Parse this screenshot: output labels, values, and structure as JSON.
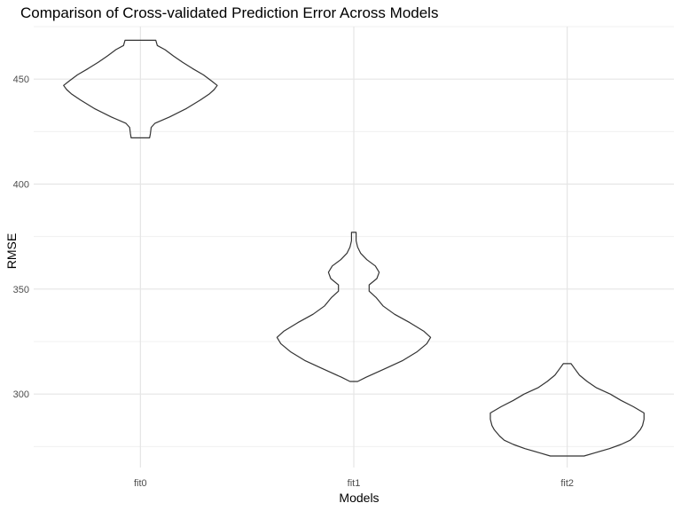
{
  "chart_data": {
    "type": "violin",
    "title": "Comparison of Cross-validated Prediction Error Across Models",
    "xlabel": "Models",
    "ylabel": "RMSE",
    "categories": [
      "fit0",
      "fit1",
      "fit2"
    ],
    "y_ticks": [
      300,
      350,
      400,
      450
    ],
    "ylim": [
      265,
      475
    ],
    "grid": true,
    "legend": "none",
    "colors": {
      "outline": "#333333",
      "grid_major": "#e5e5e5",
      "grid_minor": "#f0f0f0",
      "text": "#4d4d4d"
    },
    "series": [
      {
        "category": "fit0",
        "min": 422,
        "max": 468.5,
        "density": [
          [
            422,
            0.12
          ],
          [
            424,
            0.13
          ],
          [
            427,
            0.14
          ],
          [
            429,
            0.19
          ],
          [
            432,
            0.38
          ],
          [
            436,
            0.6
          ],
          [
            440,
            0.78
          ],
          [
            443,
            0.9
          ],
          [
            445,
            0.96
          ],
          [
            447,
            1.0
          ],
          [
            449,
            0.93
          ],
          [
            452,
            0.82
          ],
          [
            455,
            0.68
          ],
          [
            458,
            0.55
          ],
          [
            461,
            0.43
          ],
          [
            464,
            0.32
          ],
          [
            466,
            0.22
          ],
          [
            468.5,
            0.2
          ]
        ]
      },
      {
        "category": "fit1",
        "min": 306,
        "max": 377,
        "density": [
          [
            306,
            0.05
          ],
          [
            308,
            0.16
          ],
          [
            312,
            0.4
          ],
          [
            316,
            0.64
          ],
          [
            320,
            0.82
          ],
          [
            324,
            0.95
          ],
          [
            327,
            1.0
          ],
          [
            330,
            0.91
          ],
          [
            334,
            0.73
          ],
          [
            338,
            0.53
          ],
          [
            342,
            0.38
          ],
          [
            346,
            0.29
          ],
          [
            349,
            0.2
          ],
          [
            352,
            0.2
          ],
          [
            355,
            0.3
          ],
          [
            358,
            0.33
          ],
          [
            361,
            0.28
          ],
          [
            364,
            0.17
          ],
          [
            367,
            0.09
          ],
          [
            370,
            0.05
          ],
          [
            373,
            0.03
          ],
          [
            375,
            0.03
          ],
          [
            377,
            0.03
          ]
        ]
      },
      {
        "category": "fit2",
        "min": 270.5,
        "max": 314.5,
        "density": [
          [
            270.5,
            0.22
          ],
          [
            272,
            0.36
          ],
          [
            274,
            0.55
          ],
          [
            276,
            0.7
          ],
          [
            278,
            0.82
          ],
          [
            280,
            0.88
          ],
          [
            283,
            0.95
          ],
          [
            285,
            0.98
          ],
          [
            288,
            1.0
          ],
          [
            291,
            1.0
          ],
          [
            294,
            0.86
          ],
          [
            297,
            0.7
          ],
          [
            300,
            0.56
          ],
          [
            303,
            0.38
          ],
          [
            306,
            0.26
          ],
          [
            309,
            0.16
          ],
          [
            312,
            0.1
          ],
          [
            314.5,
            0.05
          ]
        ]
      }
    ]
  }
}
